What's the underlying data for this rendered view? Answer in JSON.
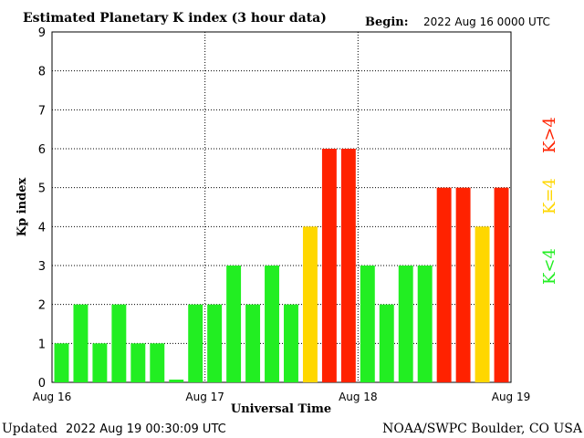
{
  "header": {
    "title": "Estimated Planetary K index (3 hour data)",
    "begin_label": "Begin:",
    "begin_value": "2022 Aug 16 0000 UTC"
  },
  "footer": {
    "updated_label": "Updated",
    "updated_value": "2022 Aug 19 00:30:09 UTC",
    "source": "NOAA/SWPC Boulder, CO USA"
  },
  "legend": [
    {
      "label": "K<4",
      "color": "#22ee22"
    },
    {
      "label": "K=4",
      "color": "#ffd700"
    },
    {
      "label": "K>4",
      "color": "#ff2200"
    }
  ],
  "chart_data": {
    "type": "bar",
    "title": "Estimated Planetary K index (3 hour data)",
    "xlabel": "Universal Time",
    "ylabel": "Kp index",
    "ylim": [
      0,
      9
    ],
    "yticks": [
      0,
      1,
      2,
      3,
      4,
      5,
      6,
      7,
      8,
      9
    ],
    "xticks": [
      "Aug 16",
      "Aug 17",
      "Aug 18",
      "Aug 19"
    ],
    "bar_interval_hours": 3,
    "grid": true,
    "values": [
      1,
      2,
      1,
      2,
      1,
      1,
      0.07,
      2,
      2,
      3,
      2,
      3,
      2,
      4,
      6,
      6,
      3,
      2,
      3,
      3,
      5,
      5,
      4,
      5
    ],
    "colors": {
      "below4": "#22ee22",
      "equal4": "#ffd700",
      "above4": "#ff2200"
    }
  }
}
